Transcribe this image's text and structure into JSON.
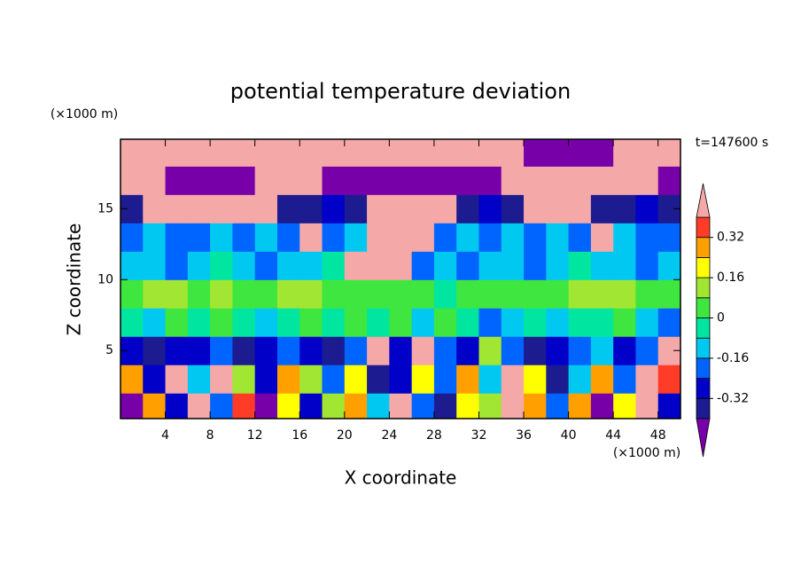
{
  "chart_data": {
    "type": "contour",
    "title": "potential temperature deviation",
    "x_label": "X coordinate",
    "y_label": "Z coordinate",
    "x_unit": "(×1000 m)",
    "y_unit": "(×1000 m)",
    "time_label": "t=147600 s",
    "xlim": [
      0,
      50
    ],
    "ylim": [
      0.2,
      19.9
    ],
    "xticks": [
      4,
      8,
      12,
      16,
      20,
      24,
      28,
      32,
      36,
      40,
      44,
      48
    ],
    "yticks": [
      5,
      10,
      15
    ],
    "x": [
      1,
      3,
      5,
      7,
      9,
      11,
      13,
      15,
      17,
      19,
      21,
      23,
      25,
      27,
      29,
      31,
      33,
      35,
      37,
      39,
      41,
      43,
      45,
      47,
      49
    ],
    "y": [
      1,
      3,
      5,
      7,
      9,
      11,
      13,
      15,
      17,
      19
    ],
    "z": [
      [
        -0.45,
        0.3,
        -0.3,
        0.45,
        -0.2,
        0.35,
        -0.45,
        0.2,
        -0.3,
        0.1,
        0.3,
        -0.1,
        0.5,
        -0.2,
        -0.4,
        0.2,
        0.1,
        0.45,
        0.3,
        -0.2,
        0.3,
        -0.45,
        0.2,
        0.45,
        -0.3
      ],
      [
        0.3,
        -0.3,
        0.45,
        -0.1,
        0.4,
        0.1,
        -0.3,
        0.3,
        0.1,
        -0.2,
        0.2,
        -0.4,
        -0.3,
        0.2,
        -0.2,
        0.3,
        -0.1,
        0.5,
        0.2,
        -0.35,
        -0.1,
        0.3,
        -0.2,
        0.4,
        0.35
      ],
      [
        -0.3,
        -0.35,
        -0.3,
        -0.3,
        -0.2,
        -0.35,
        -0.3,
        -0.2,
        -0.3,
        -0.35,
        -0.2,
        0.5,
        -0.3,
        0.45,
        -0.2,
        -0.3,
        0.1,
        -0.2,
        -0.35,
        -0.3,
        -0.2,
        -0.1,
        -0.3,
        -0.2,
        0.45
      ],
      [
        -0.04,
        -0.12,
        0.04,
        -0.04,
        0.04,
        -0.04,
        -0.12,
        -0.04,
        0.04,
        -0.04,
        0.04,
        -0.04,
        0.04,
        -0.12,
        0.04,
        -0.04,
        -0.2,
        -0.12,
        -0.04,
        -0.12,
        -0.04,
        -0.04,
        0.04,
        -0.12,
        -0.2
      ],
      [
        0.04,
        0.1,
        0.1,
        0.04,
        0.1,
        0.04,
        0.04,
        0.1,
        0.1,
        0.04,
        0.04,
        0.04,
        0.04,
        0.04,
        -0.04,
        0.04,
        0.04,
        0.04,
        0.04,
        0.04,
        0.1,
        0.1,
        0.1,
        0.04,
        0.04
      ],
      [
        -0.12,
        -0.12,
        -0.2,
        -0.12,
        -0.04,
        -0.12,
        -0.2,
        -0.12,
        -0.12,
        -0.04,
        0.5,
        0.5,
        0.45,
        -0.2,
        -0.12,
        -0.2,
        -0.12,
        -0.12,
        -0.2,
        -0.12,
        -0.04,
        -0.12,
        -0.12,
        -0.2,
        -0.12
      ],
      [
        -0.2,
        -0.12,
        -0.2,
        -0.2,
        -0.12,
        -0.2,
        -0.12,
        -0.2,
        0.5,
        -0.2,
        -0.12,
        0.5,
        0.5,
        0.5,
        -0.2,
        -0.12,
        -0.2,
        -0.12,
        -0.2,
        -0.12,
        -0.2,
        0.5,
        -0.12,
        -0.2,
        -0.2
      ],
      [
        -0.36,
        0.5,
        0.5,
        0.5,
        0.5,
        0.5,
        0.5,
        -0.36,
        -0.36,
        -0.3,
        -0.36,
        0.5,
        0.5,
        0.5,
        0.5,
        -0.36,
        -0.3,
        -0.36,
        0.5,
        0.5,
        0.5,
        -0.36,
        -0.36,
        -0.3,
        -0.36
      ],
      [
        0.5,
        0.5,
        -0.5,
        -0.5,
        -0.5,
        -0.5,
        0.5,
        0.5,
        0.5,
        -0.5,
        -0.5,
        -0.5,
        -0.5,
        -0.5,
        -0.5,
        -0.5,
        -0.5,
        0.5,
        0.5,
        0.5,
        0.5,
        0.5,
        0.5,
        0.5,
        -0.5
      ],
      [
        0.5,
        0.5,
        0.5,
        0.5,
        0.5,
        0.5,
        0.5,
        0.5,
        0.5,
        0.5,
        0.5,
        0.5,
        0.5,
        0.5,
        0.5,
        0.5,
        0.5,
        0.5,
        -0.5,
        -0.5,
        -0.5,
        -0.5,
        0.5,
        0.5,
        0.5
      ]
    ],
    "levels": [
      -0.4,
      -0.32,
      -0.24,
      -0.16,
      -0.08,
      0,
      0.08,
      0.16,
      0.24,
      0.32,
      0.4
    ],
    "colors": [
      "#7800a8",
      "#1c1c90",
      "#0000c8",
      "#0064ff",
      "#00c8f0",
      "#00e6a0",
      "#40e640",
      "#a0e632",
      "#ffff00",
      "#ffa000",
      "#ff3c28",
      "#f5a8a8"
    ],
    "colorbar_ticks": [
      0.32,
      0.16,
      0,
      -0.16,
      -0.32
    ]
  }
}
